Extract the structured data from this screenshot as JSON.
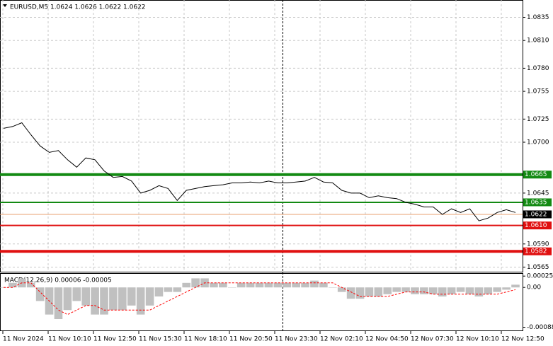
{
  "chart_data": [
    {
      "type": "line",
      "title": "EURUSD,M5  1.0624 1.0626 1.0622 1.0622",
      "color": "#000000",
      "values": [
        1.0715,
        1.0717,
        1.0721,
        1.0708,
        1.0696,
        1.0689,
        1.0691,
        1.0681,
        1.0673,
        1.0683,
        1.0681,
        1.0669,
        1.0662,
        1.0663,
        1.0658,
        1.0645,
        1.0648,
        1.0653,
        1.065,
        1.0637,
        1.0648,
        1.065,
        1.0652,
        1.0653,
        1.0654,
        1.0656,
        1.0656,
        1.0657,
        1.0656,
        1.0658,
        1.0656,
        1.0656,
        1.0657,
        1.0658,
        1.0662,
        1.0657,
        1.0656,
        1.0648,
        1.0645,
        1.0645,
        1.064,
        1.0642,
        1.064,
        1.0639,
        1.0635,
        1.0633,
        1.063,
        1.063,
        1.0622,
        1.0628,
        1.0624,
        1.0628,
        1.0615,
        1.0618,
        1.0624,
        1.0627,
        1.0624
      ],
      "ylim": [
        1.056,
        1.0853
      ],
      "yticks": [
        {
          "value": 1.0835,
          "label": "1.0835"
        },
        {
          "value": 1.081,
          "label": "1.0810"
        },
        {
          "value": 1.078,
          "label": "1.0780"
        },
        {
          "value": 1.0755,
          "label": "1.0755"
        },
        {
          "value": 1.0725,
          "label": "1.0725"
        },
        {
          "value": 1.07,
          "label": "1.0700"
        },
        {
          "value": 1.0645,
          "label": "1.0645"
        },
        {
          "value": 1.059,
          "label": "1.0590"
        },
        {
          "value": 1.0565,
          "label": "1.0565"
        }
      ],
      "levels": [
        {
          "value": 1.0665,
          "label": "1.0665",
          "color": "#138a13"
        },
        {
          "value": 1.0635,
          "label": "1.0635",
          "color": "#138a13"
        },
        {
          "value": 1.061,
          "label": "1.0610",
          "color": "#e01010"
        },
        {
          "value": 1.0582,
          "label": "1.0582",
          "color": "#e01010"
        }
      ],
      "last": {
        "value": 1.0622,
        "label": "1.0622"
      },
      "x_labels": [
        "11 Nov 2024",
        "11 Nov 10:10",
        "11 Nov 12:50",
        "11 Nov 15:30",
        "11 Nov 18:10",
        "11 Nov 20:50",
        "11 Nov 23:30",
        "12 Nov 02:10",
        "12 Nov 04:50",
        "12 Nov 07:30",
        "12 Nov 10:10",
        "12 Nov 12:50"
      ],
      "grid": true
    },
    {
      "type": "bar",
      "title": "MACD(12,26,9) 0.00006 -0.00005",
      "ylim": [
        -0.00095,
        0.0003
      ],
      "yticks": [
        0.00025,
        {
          "value": 0,
          "label": "0.00"
        },
        -0.00088
      ],
      "series": [
        {
          "name": "MACD",
          "color": "#c0c0c0",
          "values": [
            0,
            0.0001,
            0.0002,
            0.0001,
            -0.0003,
            -0.0006,
            -0.0007,
            -0.0005,
            -0.0003,
            -0.0004,
            -0.0006,
            -0.0006,
            -0.0005,
            -0.0005,
            -0.0004,
            -0.0006,
            -0.0004,
            -0.0002,
            -0.0001,
            -0.0001,
            0.0001,
            0.0002,
            0.0002,
            0.0001,
            0.0001,
            0,
            0.0001,
            0.0001,
            0.0001,
            0.0001,
            0.0001,
            0.0001,
            0.0001,
            0.0001,
            0.00015,
            0.0001,
            0,
            -0.0001,
            -0.00025,
            -0.00025,
            -0.0002,
            -0.0002,
            -0.00015,
            -0.0001,
            -0.0001,
            -0.00015,
            -0.00015,
            -0.00015,
            -0.0002,
            -0.00015,
            -0.0001,
            -0.00015,
            -0.0002,
            -0.00015,
            -0.0001,
            -5e-05,
            6e-05
          ]
        },
        {
          "name": "Signal",
          "color": "#ff0000",
          "values": [
            0,
            0,
            0.0001,
            0.0001,
            -0.0001,
            -0.0003,
            -0.0005,
            -0.0006,
            -0.0005,
            -0.0004,
            -0.0004,
            -0.0005,
            -0.0005,
            -0.0005,
            -0.0005,
            -0.0005,
            -0.0005,
            -0.0004,
            -0.0003,
            -0.0002,
            -0.0001,
            0,
            0.0001,
            0.0001,
            0.0001,
            0.0001,
            0.0001,
            0.0001,
            0.0001,
            0.0001,
            0.0001,
            0.0001,
            0.0001,
            0.0001,
            0.0001,
            0.0001,
            0.0001,
            0,
            -0.0001,
            -0.0002,
            -0.0002,
            -0.0002,
            -0.0002,
            -0.00015,
            -0.0001,
            -0.0001,
            -0.0001,
            -0.00015,
            -0.00015,
            -0.00015,
            -0.00015,
            -0.00015,
            -0.00015,
            -0.00015,
            -0.00015,
            -0.0001,
            -5e-05
          ]
        }
      ]
    }
  ]
}
